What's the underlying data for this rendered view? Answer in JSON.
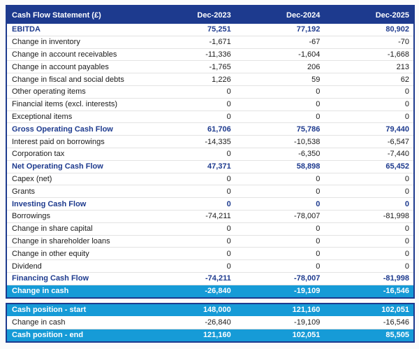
{
  "colors": {
    "navy": "#1d3a8e",
    "cyan": "#169bd7",
    "body_text": "#1a1a1a",
    "row_border": "#e3e3e3",
    "header_text": "#ffffff",
    "highlight_text": "#ffffff"
  },
  "chart_data": {
    "type": "table",
    "title": "Cash Flow Statement (£)",
    "currency": "£",
    "columns": [
      "Dec-2023",
      "Dec-2024",
      "Dec-2025"
    ],
    "rows": [
      {
        "label": "EBITDA",
        "values": [
          "75,251",
          "77,192",
          "80,902"
        ],
        "style": "bold"
      },
      {
        "label": "Change in inventory",
        "values": [
          "-1,671",
          "-67",
          "-70"
        ],
        "style": "normal"
      },
      {
        "label": "Change in account receivables",
        "values": [
          "-11,336",
          "-1,604",
          "-1,668"
        ],
        "style": "normal"
      },
      {
        "label": "Change in account payables",
        "values": [
          "-1,765",
          "206",
          "213"
        ],
        "style": "normal"
      },
      {
        "label": "Change in fiscal and social debts",
        "values": [
          "1,226",
          "59",
          "62"
        ],
        "style": "normal"
      },
      {
        "label": "Other operating items",
        "values": [
          "0",
          "0",
          "0"
        ],
        "style": "normal"
      },
      {
        "label": "Financial items (excl. interests)",
        "values": [
          "0",
          "0",
          "0"
        ],
        "style": "normal"
      },
      {
        "label": "Exceptional items",
        "values": [
          "0",
          "0",
          "0"
        ],
        "style": "normal"
      },
      {
        "label": "Gross Operating Cash Flow",
        "values": [
          "61,706",
          "75,786",
          "79,440"
        ],
        "style": "bold"
      },
      {
        "label": "Interest paid on borrowings",
        "values": [
          "-14,335",
          "-10,538",
          "-6,547"
        ],
        "style": "normal"
      },
      {
        "label": "Corporation tax",
        "values": [
          "0",
          "-6,350",
          "-7,440"
        ],
        "style": "normal"
      },
      {
        "label": "Net Operating Cash Flow",
        "values": [
          "47,371",
          "58,898",
          "65,452"
        ],
        "style": "bold"
      },
      {
        "label": "Capex (net)",
        "values": [
          "0",
          "0",
          "0"
        ],
        "style": "normal"
      },
      {
        "label": "Grants",
        "values": [
          "0",
          "0",
          "0"
        ],
        "style": "normal"
      },
      {
        "label": "Investing Cash Flow",
        "values": [
          "0",
          "0",
          "0"
        ],
        "style": "bold"
      },
      {
        "label": "Borrowings",
        "values": [
          "-74,211",
          "-78,007",
          "-81,998"
        ],
        "style": "normal"
      },
      {
        "label": "Change in share capital",
        "values": [
          "0",
          "0",
          "0"
        ],
        "style": "normal"
      },
      {
        "label": "Change in shareholder loans",
        "values": [
          "0",
          "0",
          "0"
        ],
        "style": "normal"
      },
      {
        "label": "Change in other equity",
        "values": [
          "0",
          "0",
          "0"
        ],
        "style": "normal"
      },
      {
        "label": "Dividend",
        "values": [
          "0",
          "0",
          "0"
        ],
        "style": "normal"
      },
      {
        "label": "Financing Cash Flow",
        "values": [
          "-74,211",
          "-78,007",
          "-81,998"
        ],
        "style": "bold"
      },
      {
        "label": "Change in cash",
        "values": [
          "-26,840",
          "-19,109",
          "-16,546"
        ],
        "style": "highlight"
      }
    ],
    "summary_rows": [
      {
        "label": "Cash position - start",
        "values": [
          "148,000",
          "121,160",
          "102,051"
        ],
        "style": "highlight"
      },
      {
        "label": "Change in cash",
        "values": [
          "-26,840",
          "-19,109",
          "-16,546"
        ],
        "style": "normal"
      },
      {
        "label": "Cash position - end",
        "values": [
          "121,160",
          "102,051",
          "85,505"
        ],
        "style": "highlight"
      }
    ]
  }
}
